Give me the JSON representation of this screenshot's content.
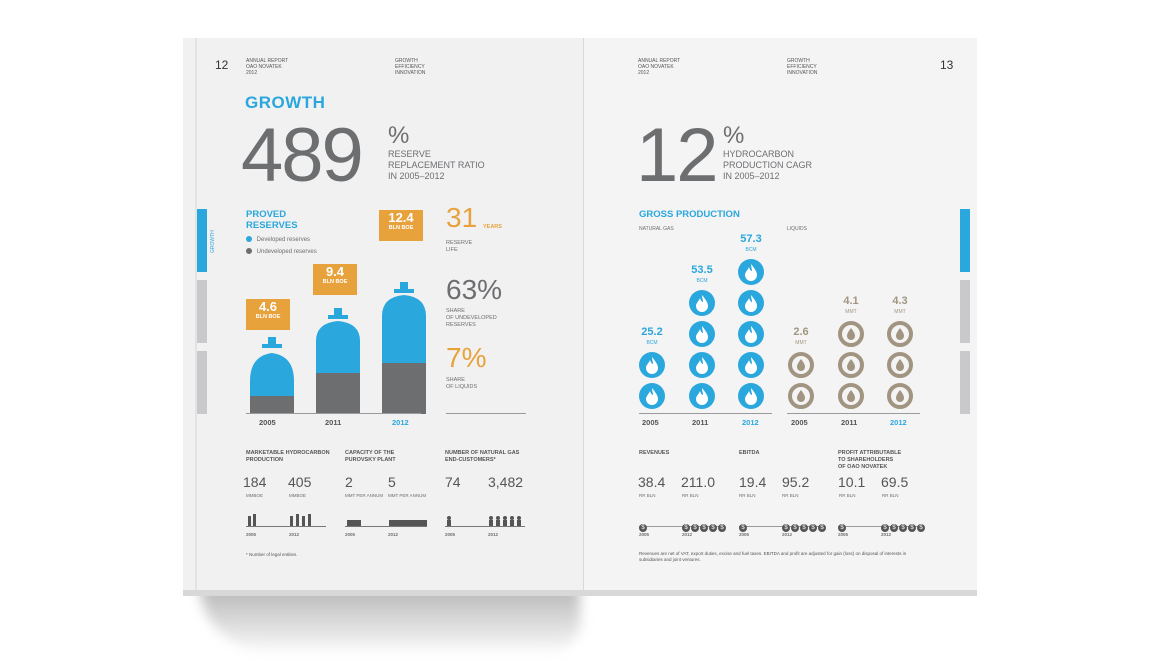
{
  "left": {
    "page_number": "12",
    "header_left": [
      "ANNUAL REPORT",
      "OAO NOVATEK",
      "2012"
    ],
    "header_right": [
      "GROWTH",
      "EFFICIENCY",
      "INNOVATION"
    ],
    "side_tab": "GROWTH",
    "title": "GROWTH",
    "big_number": "489",
    "big_pct": "%",
    "big_caption": [
      "RESERVE",
      "REPLACEMENT RATIO",
      "IN 2005–2012"
    ],
    "proved_title": [
      "PROVED",
      "RESERVES"
    ],
    "legend": [
      "Developed reserves",
      "Undeveloped reserves"
    ],
    "bars": [
      {
        "year": "2005",
        "value": "4.6",
        "unit": "BLN BOE"
      },
      {
        "year": "2011",
        "value": "9.4",
        "unit": "BLN BOE"
      },
      {
        "year": "2012",
        "value": "12.4",
        "unit": "BLN BOE"
      }
    ],
    "reserve_life": {
      "value": "31",
      "unit": "YEARS",
      "caption": [
        "RESERVE",
        "LIFE"
      ]
    },
    "undeveloped": {
      "value": "63%",
      "caption": [
        "SHARE",
        "OF UNDEVELOPED",
        "RESERVES"
      ]
    },
    "liquids": {
      "value": "7%",
      "caption": [
        "SHARE",
        "OF LIQUIDS"
      ]
    },
    "bottom": [
      {
        "title": [
          "MARKETABLE HYDROCARBON",
          "PRODUCTION"
        ],
        "v1": "184",
        "u1": "MMBOE",
        "v2": "405",
        "u2": "MMBOE"
      },
      {
        "title": [
          "CAPACITY OF THE",
          "PUROVSKY PLANT"
        ],
        "v1": "2",
        "u1": "MMT PER ANNUM",
        "v2": "5",
        "u2": "MMT PER ANNUM"
      },
      {
        "title": [
          "NUMBER OF NATURAL GAS",
          "END-CUSTOMERS*"
        ],
        "v1": "74",
        "u1": "",
        "v2": "3,482",
        "u2": ""
      }
    ],
    "bottom_years": [
      "2005",
      "2012"
    ],
    "footnote": "* Number of legal entities."
  },
  "right": {
    "page_number": "13",
    "header_left": [
      "ANNUAL REPORT",
      "OAO NOVATEK",
      "2012"
    ],
    "header_right": [
      "GROWTH",
      "EFFICIENCY",
      "INNOVATION"
    ],
    "big_number": "12",
    "big_pct": "%",
    "big_caption": [
      "HYDROCARBON",
      "PRODUCTION CAGR",
      "IN 2005–2012"
    ],
    "gross_title": "GROSS PRODUCTION",
    "gas_label": "NATURAL GAS",
    "liquids_label": "LIQUIDS",
    "gas": [
      {
        "year": "2005",
        "value": "25.2",
        "unit": "BCM"
      },
      {
        "year": "2011",
        "value": "53.5",
        "unit": "BCM"
      },
      {
        "year": "2012",
        "value": "57.3",
        "unit": "BCM"
      }
    ],
    "liq": [
      {
        "year": "2005",
        "value": "2.6",
        "unit": "MMT"
      },
      {
        "year": "2011",
        "value": "4.1",
        "unit": "MMT"
      },
      {
        "year": "2012",
        "value": "4.3",
        "unit": "MMT"
      }
    ],
    "bottom": [
      {
        "title": [
          "REVENUES"
        ],
        "v1": "38.4",
        "u1": "RR BLN",
        "v2": "211.0",
        "u2": "RR BLN"
      },
      {
        "title": [
          "EBITDA"
        ],
        "v1": "19.4",
        "u1": "RR BLN",
        "v2": "95.2",
        "u2": "RR BLN"
      },
      {
        "title": [
          "PROFIT ATTRIBUTABLE",
          "TO SHAREHOLDERS",
          "OF OAO NOVATEK"
        ],
        "v1": "10.1",
        "u1": "RR BLN",
        "v2": "69.5",
        "u2": "RR BLN"
      }
    ],
    "bottom_years": [
      "2005",
      "2012"
    ],
    "coin_symbol": "$",
    "footnote": [
      "Revenues are net of VAT, export duties, excise and fuel taxes. EBITDA and profit are adjusted for gain (loss) on disposal of interests in",
      "subsidiaries and joint ventures."
    ]
  }
}
